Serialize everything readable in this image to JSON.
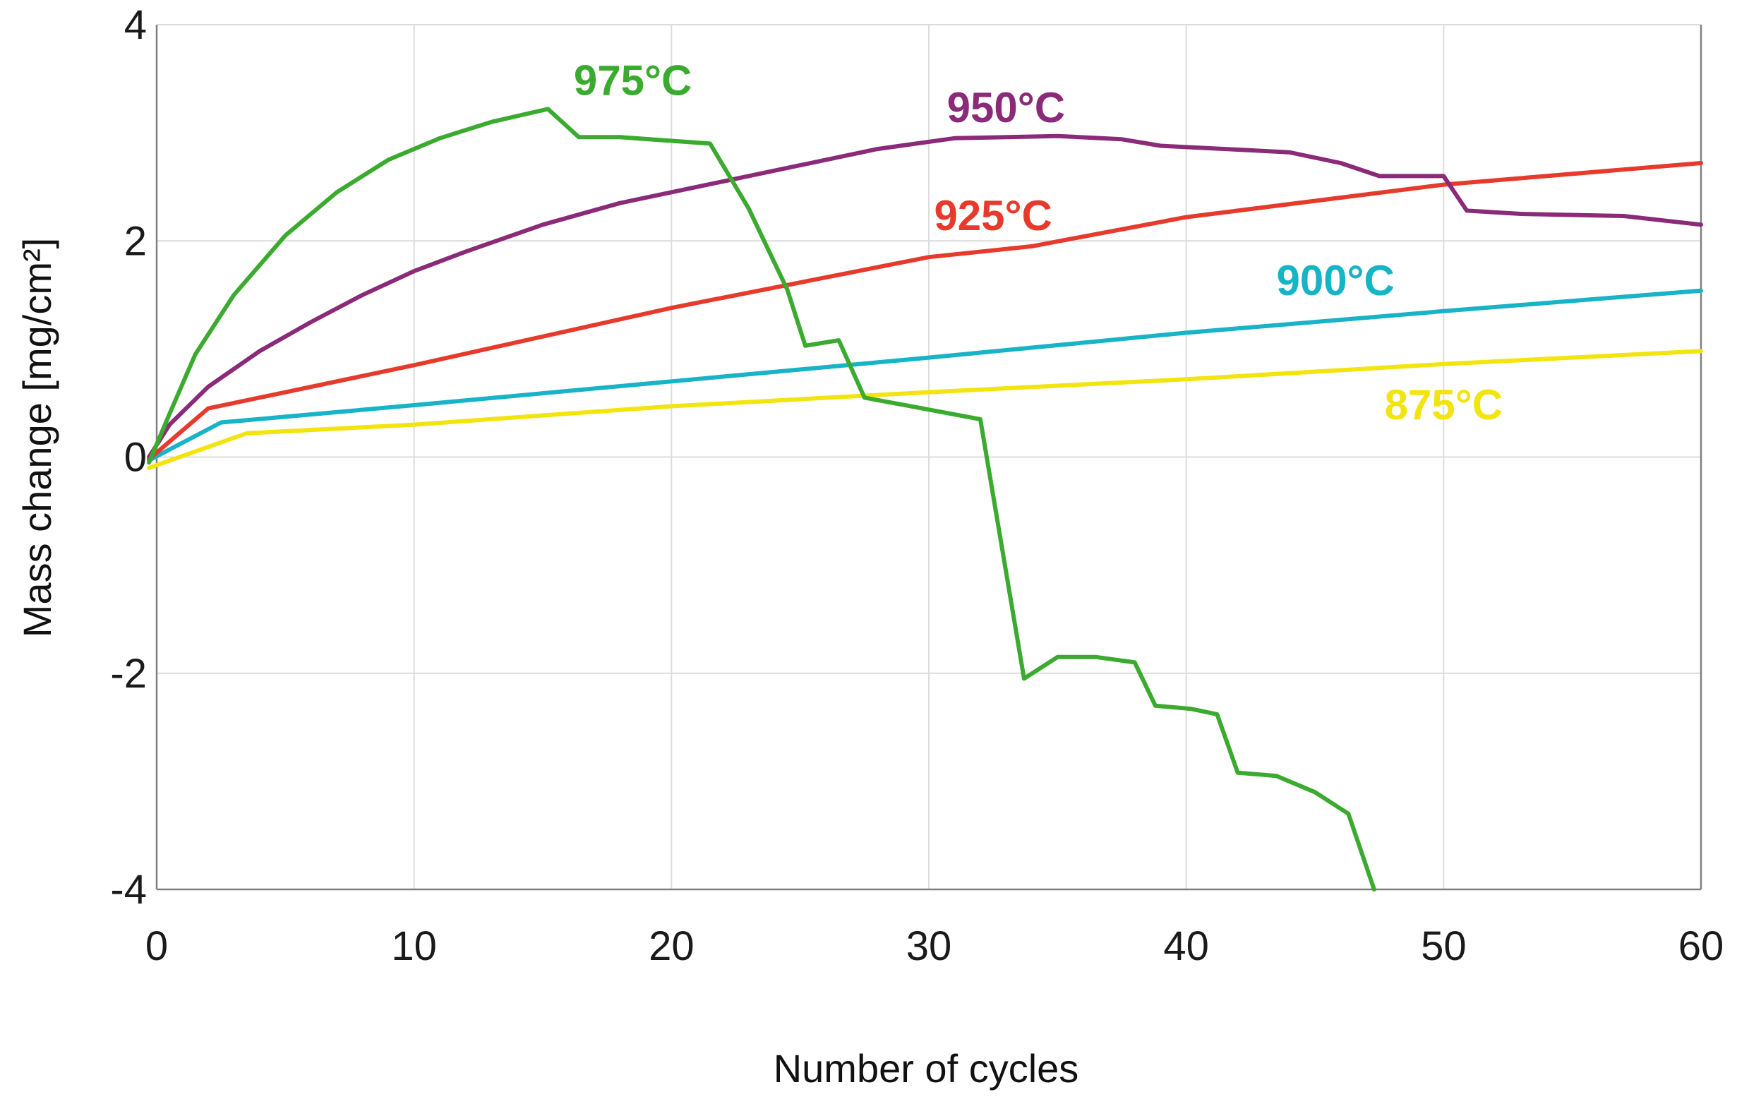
{
  "chart_data": {
    "type": "line",
    "title": "",
    "xlabel": "Number of cycles",
    "ylabel": "Mass change [mg/cm²]",
    "xlim": [
      0,
      60
    ],
    "ylim": [
      -4,
      4
    ],
    "grid": true,
    "x_ticks": [
      {
        "value": 0,
        "label": "0"
      },
      {
        "value": 10,
        "label": "10"
      },
      {
        "value": 20,
        "label": "20"
      },
      {
        "value": 30,
        "label": "30"
      },
      {
        "value": 40,
        "label": "40"
      },
      {
        "value": 50,
        "label": "50"
      },
      {
        "value": 60,
        "label": "60"
      }
    ],
    "y_ticks": [
      {
        "value": -4,
        "label": "-4"
      },
      {
        "value": -2,
        "label": "-2"
      },
      {
        "value": 0,
        "label": "0"
      },
      {
        "value": 2,
        "label": "2"
      },
      {
        "value": 4,
        "label": "4"
      }
    ],
    "series": [
      {
        "name": "875°C",
        "color": "#f2e40c",
        "label_anchor": {
          "x": 50,
          "y": 0.35
        },
        "points": [
          [
            -0.3,
            -0.1
          ],
          [
            3.5,
            0.22
          ],
          [
            10,
            0.3
          ],
          [
            20,
            0.47
          ],
          [
            30,
            0.6
          ],
          [
            40,
            0.72
          ],
          [
            50,
            0.86
          ],
          [
            60,
            0.98
          ]
        ]
      },
      {
        "name": "900°C",
        "color": "#17b3c6",
        "label_anchor": {
          "x": 45.8,
          "y": 1.5
        },
        "points": [
          [
            -0.3,
            -0.03
          ],
          [
            2.5,
            0.32
          ],
          [
            10,
            0.48
          ],
          [
            20,
            0.7
          ],
          [
            30,
            0.92
          ],
          [
            40,
            1.15
          ],
          [
            50,
            1.35
          ],
          [
            60,
            1.54
          ]
        ]
      },
      {
        "name": "925°C",
        "color": "#e63a2c",
        "label_anchor": {
          "x": 32.5,
          "y": 2.1
        },
        "points": [
          [
            -0.3,
            -0.02
          ],
          [
            2,
            0.45
          ],
          [
            10,
            0.85
          ],
          [
            20,
            1.38
          ],
          [
            30,
            1.85
          ],
          [
            34,
            1.95
          ],
          [
            40,
            2.22
          ],
          [
            50,
            2.52
          ],
          [
            60,
            2.72
          ]
        ]
      },
      {
        "name": "950°C",
        "color": "#8a2a78",
        "label_anchor": {
          "x": 33,
          "y": 3.1
        },
        "points": [
          [
            -0.3,
            0
          ],
          [
            0.5,
            0.3
          ],
          [
            2,
            0.65
          ],
          [
            4,
            0.98
          ],
          [
            6,
            1.25
          ],
          [
            8,
            1.5
          ],
          [
            10,
            1.72
          ],
          [
            12,
            1.9
          ],
          [
            15,
            2.15
          ],
          [
            18,
            2.35
          ],
          [
            21,
            2.5
          ],
          [
            25,
            2.7
          ],
          [
            28,
            2.85
          ],
          [
            31,
            2.95
          ],
          [
            35,
            2.97
          ],
          [
            37.5,
            2.94
          ],
          [
            39,
            2.88
          ],
          [
            44,
            2.82
          ],
          [
            46,
            2.72
          ],
          [
            47.5,
            2.6
          ],
          [
            50,
            2.6
          ],
          [
            50.9,
            2.28
          ],
          [
            53,
            2.25
          ],
          [
            57,
            2.23
          ],
          [
            60,
            2.15
          ]
        ]
      },
      {
        "name": "975°C",
        "color": "#3aab2e",
        "label_anchor": {
          "x": 18.5,
          "y": 3.35
        },
        "points": [
          [
            -0.3,
            -0.05
          ],
          [
            0.5,
            0.4
          ],
          [
            1.5,
            0.95
          ],
          [
            3,
            1.5
          ],
          [
            5,
            2.05
          ],
          [
            7,
            2.45
          ],
          [
            9,
            2.75
          ],
          [
            11,
            2.95
          ],
          [
            13,
            3.1
          ],
          [
            15.2,
            3.22
          ],
          [
            16.4,
            2.96
          ],
          [
            18,
            2.96
          ],
          [
            21.5,
            2.9
          ],
          [
            23,
            2.3
          ],
          [
            24.5,
            1.55
          ],
          [
            25.2,
            1.03
          ],
          [
            26.5,
            1.08
          ],
          [
            27.5,
            0.55
          ],
          [
            32,
            0.35
          ],
          [
            33.7,
            -2.05
          ],
          [
            35,
            -1.85
          ],
          [
            36.5,
            -1.85
          ],
          [
            38,
            -1.9
          ],
          [
            38.8,
            -2.3
          ],
          [
            40.2,
            -2.33
          ],
          [
            41.2,
            -2.38
          ],
          [
            42,
            -2.92
          ],
          [
            43.5,
            -2.95
          ],
          [
            45,
            -3.1
          ],
          [
            46.3,
            -3.3
          ],
          [
            47.3,
            -4.0
          ]
        ]
      }
    ]
  }
}
